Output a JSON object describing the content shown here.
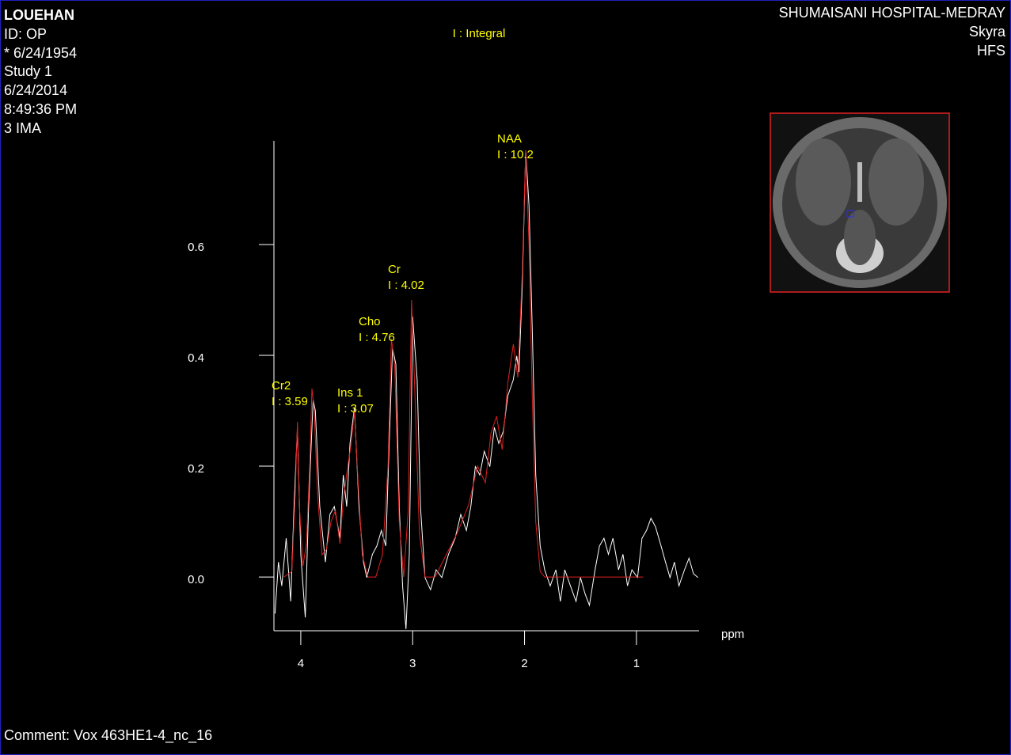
{
  "header": {
    "patient": [
      "LOUEHAN",
      "ID: OP",
      "* 6/24/1954",
      "Study 1",
      "6/24/2014",
      "8:49:36 PM",
      "3 IMA"
    ],
    "site": [
      "SHUMAISANI HOSPITAL-MEDRAY",
      "Skyra",
      "HFS"
    ]
  },
  "chart_data": {
    "type": "line",
    "subtitle": "I : Integral",
    "x_label": "ppm",
    "xlim": [
      4.24,
      0.44
    ],
    "xticks": [
      4,
      3,
      2,
      1
    ],
    "ylim": [
      -0.097,
      0.787
    ],
    "yticks": [
      {
        "value": 0,
        "label": "0.0"
      },
      0.2,
      0.4,
      0.6
    ],
    "series": [
      {
        "color": "#ffffff",
        "x": [
          4.23,
          4.2,
          4.17,
          4.13,
          4.09,
          4.06,
          4.03,
          4.0,
          3.96,
          3.93,
          3.89,
          3.87,
          3.83,
          3.78,
          3.74,
          3.7,
          3.65,
          3.62,
          3.59,
          3.56,
          3.52,
          3.48,
          3.44,
          3.41,
          3.36,
          3.32,
          3.28,
          3.24,
          3.21,
          3.18,
          3.15,
          3.12,
          3.09,
          3.06,
          3.03,
          3.0,
          2.96,
          2.93,
          2.89,
          2.84,
          2.79,
          2.74,
          2.68,
          2.62,
          2.57,
          2.52,
          2.48,
          2.44,
          2.4,
          2.36,
          2.31,
          2.27,
          2.23,
          2.19,
          2.15,
          2.1,
          2.07,
          2.05,
          2.02,
          1.99,
          1.96,
          1.93,
          1.9,
          1.86,
          1.82,
          1.77,
          1.72,
          1.68,
          1.64,
          1.59,
          1.54,
          1.5,
          1.46,
          1.42,
          1.37,
          1.33,
          1.29,
          1.25,
          1.21,
          1.16,
          1.12,
          1.08,
          1.04,
          0.99,
          0.95,
          0.91,
          0.87,
          0.83,
          0.78,
          0.74,
          0.7,
          0.66,
          0.62,
          0.57,
          0.53,
          0.49,
          0.45
        ],
        "values": [
          -0.066,
          0.027,
          -0.016,
          0.07,
          -0.044,
          0.127,
          0.27,
          0.041,
          -0.073,
          0.127,
          0.32,
          0.3,
          0.127,
          0.027,
          0.113,
          0.127,
          0.07,
          0.184,
          0.127,
          0.241,
          0.306,
          0.127,
          0.027,
          -0.001,
          0.041,
          0.056,
          0.084,
          0.056,
          0.241,
          0.413,
          0.384,
          0.127,
          -0.016,
          -0.094,
          0.041,
          0.47,
          0.356,
          0.127,
          -0.001,
          -0.023,
          0.013,
          -0.001,
          0.041,
          0.07,
          0.113,
          0.084,
          0.127,
          0.199,
          0.184,
          0.227,
          0.199,
          0.27,
          0.241,
          0.263,
          0.327,
          0.356,
          0.399,
          0.37,
          0.527,
          0.77,
          0.67,
          0.441,
          0.184,
          0.056,
          0.013,
          -0.016,
          0.013,
          -0.044,
          0.013,
          -0.016,
          -0.044,
          -0.001,
          -0.03,
          -0.051,
          0.013,
          0.056,
          0.07,
          0.041,
          0.07,
          0.013,
          0.041,
          -0.016,
          0.013,
          -0.001,
          0.07,
          0.084,
          0.106,
          0.091,
          0.056,
          0.027,
          -0.001,
          0.027,
          -0.016,
          0.013,
          0.034,
          0.006,
          -0.001
        ]
      },
      {
        "color": "#e02020",
        "x": [
          4.15,
          4.08,
          4.05,
          4.03,
          4.01,
          3.98,
          3.95,
          3.92,
          3.9,
          3.88,
          3.85,
          3.81,
          3.77,
          3.73,
          3.69,
          3.65,
          3.62,
          3.58,
          3.55,
          3.52,
          3.49,
          3.45,
          3.4,
          3.33,
          3.27,
          3.22,
          3.19,
          3.16,
          3.12,
          3.08,
          3.04,
          3.01,
          2.98,
          2.94,
          2.89,
          2.8,
          2.7,
          2.6,
          2.5,
          2.42,
          2.35,
          2.3,
          2.25,
          2.2,
          2.15,
          2.1,
          2.06,
          2.02,
          1.99,
          1.96,
          1.93,
          1.9,
          1.86,
          1.82,
          1.5,
          0.94
        ],
        "values": [
          0,
          0.01,
          0.15,
          0.28,
          0.12,
          0.02,
          0.06,
          0.2,
          0.34,
          0.3,
          0.15,
          0.04,
          0.05,
          0.1,
          0.12,
          0.06,
          0.14,
          0.2,
          0.24,
          0.3,
          0.18,
          0.04,
          0,
          0,
          0.04,
          0.2,
          0.43,
          0.38,
          0.1,
          0,
          0.12,
          0.5,
          0.33,
          0.08,
          0,
          0,
          0.04,
          0.08,
          0.13,
          0.2,
          0.17,
          0.26,
          0.29,
          0.23,
          0.35,
          0.42,
          0.36,
          0.55,
          0.77,
          0.6,
          0.32,
          0.1,
          0.01,
          0,
          0,
          0
        ]
      }
    ],
    "annotations": [
      {
        "name": "Cr2",
        "integral": "I : 3.59"
      },
      {
        "name": "Ins 1",
        "integral": "I : 3.07"
      },
      {
        "name": "Cho",
        "integral": "I : 4.76"
      },
      {
        "name": "Cr",
        "integral": "I : 4.02"
      },
      {
        "name": "NAA",
        "integral": "I : 10.2"
      }
    ]
  },
  "footer": {
    "comment": "Comment: Vox 463HE1-4_nc_16"
  }
}
